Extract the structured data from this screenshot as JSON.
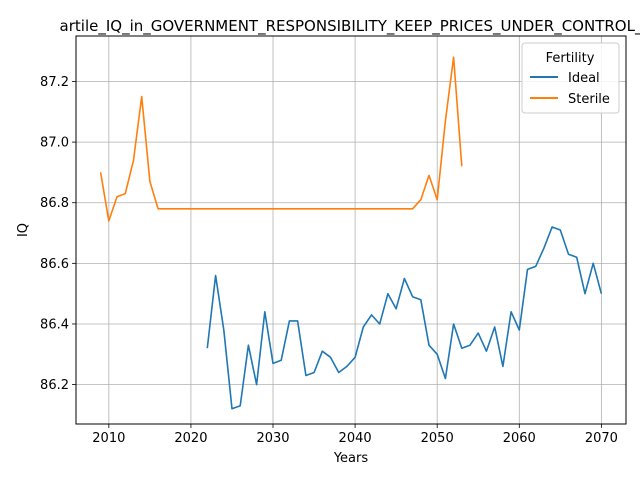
{
  "chart_data": {
    "type": "line",
    "title": "artile_IQ_in_GOVERNMENT_RESPONSIBILITY_KEEP_PRICES_UNDER_CONTROL_",
    "xlabel": "Years",
    "ylabel": "IQ",
    "xlim": [
      2006,
      2073
    ],
    "ylim": [
      86.07,
      87.35
    ],
    "x_ticks": [
      2010,
      2020,
      2030,
      2040,
      2050,
      2060,
      2070
    ],
    "y_ticks": [
      86.2,
      86.4,
      86.6,
      86.8,
      87.0,
      87.2
    ],
    "x_tick_labels": [
      "2010",
      "2020",
      "2030",
      "2040",
      "2050",
      "2060",
      "2070"
    ],
    "y_tick_labels": [
      "86.2",
      "86.4",
      "86.6",
      "86.8",
      "87.0",
      "87.2"
    ],
    "grid": true,
    "legend": {
      "title": "Fertility",
      "placement": "top-right"
    },
    "series": [
      {
        "name": "Ideal",
        "color": "#1f77b4",
        "x": [
          2022,
          2023,
          2024,
          2025,
          2026,
          2027,
          2028,
          2029,
          2030,
          2031,
          2032,
          2033,
          2034,
          2035,
          2036,
          2037,
          2038,
          2039,
          2040,
          2041,
          2042,
          2043,
          2044,
          2045,
          2046,
          2047,
          2048,
          2049,
          2050,
          2051,
          2052,
          2053,
          2054,
          2055,
          2056,
          2057,
          2058,
          2059,
          2060,
          2061,
          2062,
          2063,
          2064,
          2065,
          2066,
          2067,
          2068,
          2069,
          2070
        ],
        "y": [
          86.32,
          86.56,
          86.38,
          86.12,
          86.13,
          86.33,
          86.2,
          86.44,
          86.27,
          86.28,
          86.41,
          86.41,
          86.23,
          86.24,
          86.31,
          86.29,
          86.24,
          86.26,
          86.29,
          86.39,
          86.43,
          86.4,
          86.5,
          86.45,
          86.55,
          86.49,
          86.48,
          86.33,
          86.3,
          86.22,
          86.4,
          86.32,
          86.33,
          86.37,
          86.31,
          86.39,
          86.26,
          86.44,
          86.38,
          86.58,
          86.59,
          86.65,
          86.72,
          86.71,
          86.63,
          86.62,
          86.5,
          86.6,
          86.5
        ]
      },
      {
        "name": "Sterile",
        "color": "#ff7f0e",
        "x": [
          2009,
          2010,
          2011,
          2012,
          2013,
          2014,
          2015,
          2016,
          2017,
          2018,
          2019,
          2020,
          2021,
          2022,
          2023,
          2024,
          2025,
          2026,
          2027,
          2028,
          2029,
          2030,
          2031,
          2032,
          2033,
          2034,
          2035,
          2036,
          2037,
          2038,
          2039,
          2040,
          2041,
          2042,
          2043,
          2044,
          2045,
          2046,
          2047,
          2048,
          2049,
          2050,
          2051,
          2052,
          2053
        ],
        "y": [
          86.9,
          86.74,
          86.82,
          86.83,
          86.94,
          87.15,
          86.87,
          86.78,
          86.78,
          86.78,
          86.78,
          86.78,
          86.78,
          86.78,
          86.78,
          86.78,
          86.78,
          86.78,
          86.78,
          86.78,
          86.78,
          86.78,
          86.78,
          86.78,
          86.78,
          86.78,
          86.78,
          86.78,
          86.78,
          86.78,
          86.78,
          86.78,
          86.78,
          86.78,
          86.78,
          86.78,
          86.78,
          86.78,
          86.78,
          86.81,
          86.89,
          86.81,
          87.07,
          87.28,
          86.92
        ]
      }
    ]
  }
}
